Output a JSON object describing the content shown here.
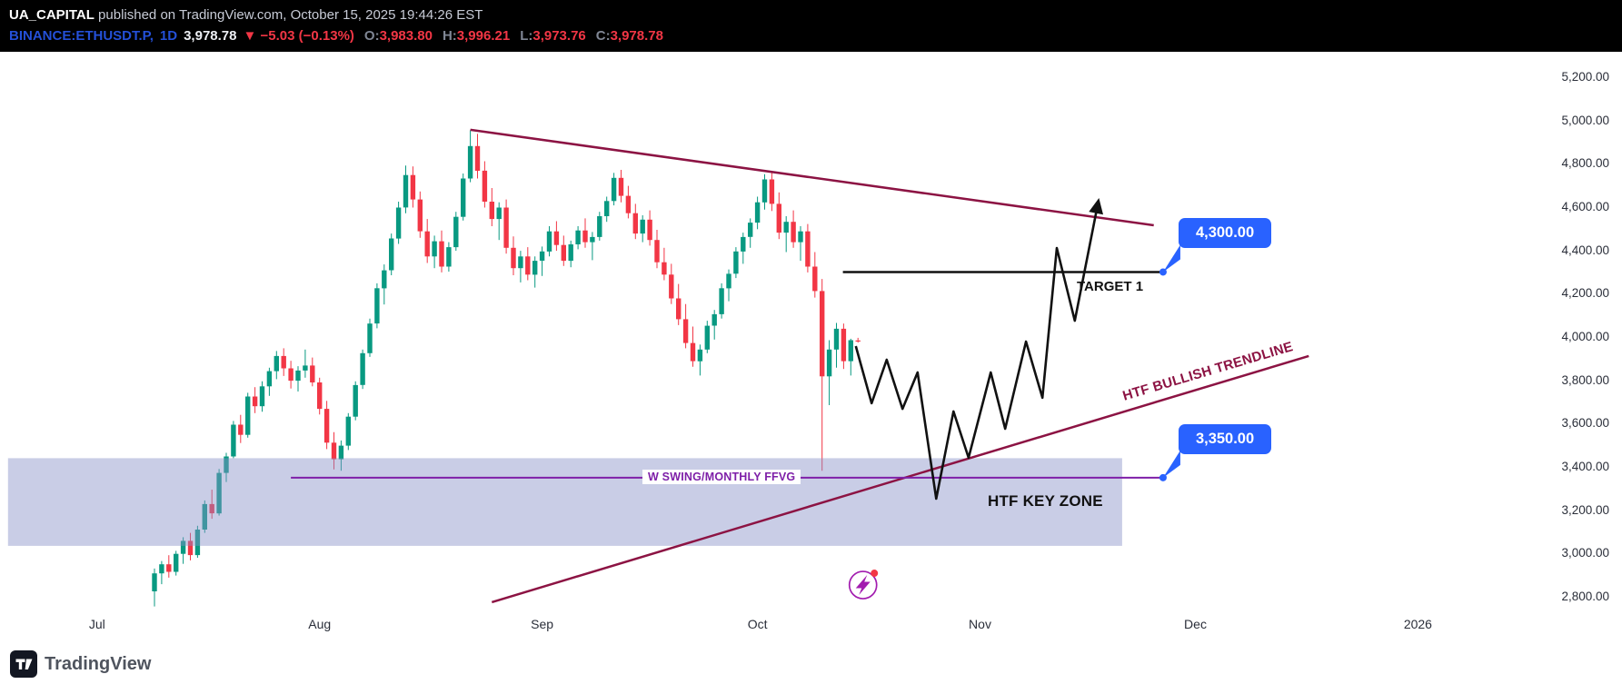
{
  "header": {
    "author": "UA_CAPITAL",
    "publish_info": " published on TradingView.com, October 15, 2025 19:44:26 EST",
    "symbol": "BINANCE:ETHUSDT.P,",
    "timeframe": "1D",
    "last_price": "3,978.78",
    "change": "▼ −5.03 (−0.13%)",
    "ohlc": [
      {
        "label": "O:",
        "value": "3,983.80"
      },
      {
        "label": "H:",
        "value": "3,996.21"
      },
      {
        "label": "L:",
        "value": "3,973.76"
      },
      {
        "label": "C:",
        "value": "3,978.78"
      }
    ]
  },
  "colors": {
    "background": "#ffffff",
    "header_bg": "#000000",
    "up": "#089981",
    "down": "#f23645",
    "callout_blue": "#2962ff",
    "trendline_maroon": "#8c1343",
    "ffvg_purple": "#7e1fa8",
    "zone_lavender": "#8890c8"
  },
  "annotations": {
    "target_text": "TARGET 1",
    "key_zone_text": "HTF KEY ZONE",
    "ffvg_text": "W SWING/MONTHLY FFVG",
    "trendline_text": "HTF BULLISH TRENDLINE",
    "callout_color": "#2962ff",
    "callouts": [
      {
        "text": "4,300.00",
        "price": 4300,
        "anchor_d": 140.5
      },
      {
        "text": "3,350.00",
        "price": 3350,
        "anchor_d": 140.5
      }
    ],
    "target_line": {
      "price": 4300,
      "from_d": 95.9,
      "to_d": 140.5,
      "color": "#111111"
    },
    "ffvg_line": {
      "price": 3350,
      "from_d": 19,
      "to_d": 140.5,
      "color": "#7e1fa8"
    },
    "resistance_trendline": {
      "from": [
        44,
        4957
      ],
      "to": [
        139.2,
        4516
      ],
      "color": "#8c1343"
    },
    "bullish_trendline": {
      "from": [
        47,
        2775
      ],
      "to": [
        160.8,
        3912
      ],
      "color": "#8c1343"
    },
    "key_zone": {
      "price_top": 3440,
      "price_bottom": 3035,
      "from_d": -20.4,
      "to_d": 134.8,
      "color": "rgba(136,144,200,0.45)"
    },
    "projection": {
      "color": "#111111",
      "points": [
        [
          97.7,
          3958
        ],
        [
          99.9,
          3694
        ],
        [
          102,
          3895
        ],
        [
          104.2,
          3668
        ],
        [
          106.3,
          3836
        ],
        [
          108.9,
          3253
        ],
        [
          111.3,
          3656
        ],
        [
          113.4,
          3442
        ],
        [
          116.5,
          3836
        ],
        [
          118.5,
          3576
        ],
        [
          121.4,
          3979
        ],
        [
          123.7,
          3719
        ],
        [
          125.7,
          4411
        ],
        [
          128.2,
          4075
        ],
        [
          131.4,
          4613
        ]
      ]
    },
    "boost_icon": {
      "d": 98.7,
      "price": 2854,
      "color": "#a21caf",
      "badge_color": "#f23645"
    }
  },
  "footer": {
    "brand": "TradingView"
  },
  "chart_data": {
    "type": "candlestick",
    "title": "BINANCE:ETHUSDT.P 1D",
    "interval": "1D",
    "first_candle_date": "2025-07-09",
    "last_candle_date": "2025-10-15",
    "ylim": [
      2700,
      5300
    ],
    "grid": false,
    "colors": {
      "up": "#089981",
      "down": "#f23645"
    },
    "y_axis_ticks": [
      "5,200.00",
      "5,000.00",
      "4,800.00",
      "4,600.00",
      "4,400.00",
      "4,200.00",
      "4,000.00",
      "3,800.00",
      "3,600.00",
      "3,400.00",
      "3,200.00",
      "3,000.00",
      "2,800.00"
    ],
    "x_axis_labels": [
      {
        "label": "Jul",
        "day_offset": -8
      },
      {
        "label": "Aug",
        "day_offset": 23
      },
      {
        "label": "Sep",
        "day_offset": 54
      },
      {
        "label": "Oct",
        "day_offset": 84
      },
      {
        "label": "Nov",
        "day_offset": 115
      },
      {
        "label": "Dec",
        "day_offset": 145
      },
      {
        "label": "2026",
        "day_offset": 176
      }
    ],
    "candles_ohlc": [
      [
        2825,
        2930,
        2755,
        2908
      ],
      [
        2908,
        2965,
        2858,
        2950
      ],
      [
        2950,
        2992,
        2888,
        2915
      ],
      [
        2915,
        3012,
        2898,
        2998
      ],
      [
        2998,
        3075,
        2952,
        3058
      ],
      [
        3058,
        3095,
        2968,
        2992
      ],
      [
        2992,
        3128,
        2980,
        3110
      ],
      [
        3110,
        3245,
        3095,
        3228
      ],
      [
        3228,
        3295,
        3160,
        3185
      ],
      [
        3185,
        3390,
        3175,
        3372
      ],
      [
        3372,
        3465,
        3330,
        3448
      ],
      [
        3448,
        3612,
        3440,
        3595
      ],
      [
        3595,
        3640,
        3510,
        3548
      ],
      [
        3548,
        3742,
        3535,
        3725
      ],
      [
        3725,
        3768,
        3648,
        3680
      ],
      [
        3680,
        3795,
        3655,
        3772
      ],
      [
        3772,
        3858,
        3728,
        3842
      ],
      [
        3842,
        3935,
        3805,
        3912
      ],
      [
        3912,
        3948,
        3820,
        3855
      ],
      [
        3855,
        3890,
        3762,
        3798
      ],
      [
        3798,
        3865,
        3748,
        3845
      ],
      [
        3845,
        3942,
        3812,
        3868
      ],
      [
        3868,
        3905,
        3772,
        3790
      ],
      [
        3790,
        3812,
        3642,
        3668
      ],
      [
        3668,
        3705,
        3482,
        3512
      ],
      [
        3512,
        3560,
        3388,
        3435
      ],
      [
        3435,
        3522,
        3382,
        3498
      ],
      [
        3498,
        3648,
        3478,
        3632
      ],
      [
        3632,
        3795,
        3615,
        3778
      ],
      [
        3778,
        3942,
        3760,
        3925
      ],
      [
        3925,
        4085,
        3908,
        4062
      ],
      [
        4062,
        4248,
        4040,
        4225
      ],
      [
        4225,
        4335,
        4150,
        4308
      ],
      [
        4308,
        4478,
        4285,
        4455
      ],
      [
        4455,
        4625,
        4430,
        4598
      ],
      [
        4598,
        4792,
        4572,
        4748
      ],
      [
        4748,
        4788,
        4598,
        4635
      ],
      [
        4635,
        4672,
        4458,
        4488
      ],
      [
        4488,
        4545,
        4342,
        4372
      ],
      [
        4372,
        4468,
        4318,
        4442
      ],
      [
        4442,
        4492,
        4298,
        4325
      ],
      [
        4325,
        4438,
        4302,
        4415
      ],
      [
        4415,
        4578,
        4398,
        4555
      ],
      [
        4555,
        4755,
        4538,
        4732
      ],
      [
        4732,
        4955,
        4715,
        4882
      ],
      [
        4882,
        4938,
        4732,
        4768
      ],
      [
        4768,
        4812,
        4598,
        4625
      ],
      [
        4625,
        4688,
        4512,
        4545
      ],
      [
        4545,
        4622,
        4448,
        4598
      ],
      [
        4598,
        4635,
        4385,
        4412
      ],
      [
        4412,
        4465,
        4285,
        4318
      ],
      [
        4318,
        4398,
        4252,
        4372
      ],
      [
        4372,
        4415,
        4262,
        4288
      ],
      [
        4288,
        4372,
        4228,
        4352
      ],
      [
        4352,
        4418,
        4282,
        4395
      ],
      [
        4395,
        4512,
        4372,
        4488
      ],
      [
        4488,
        4535,
        4398,
        4425
      ],
      [
        4425,
        4468,
        4328,
        4352
      ],
      [
        4352,
        4445,
        4322,
        4428
      ],
      [
        4428,
        4512,
        4405,
        4492
      ],
      [
        4492,
        4548,
        4412,
        4438
      ],
      [
        4438,
        4485,
        4355,
        4462
      ],
      [
        4462,
        4578,
        4445,
        4558
      ],
      [
        4558,
        4648,
        4532,
        4628
      ],
      [
        4628,
        4758,
        4608,
        4735
      ],
      [
        4735,
        4772,
        4622,
        4652
      ],
      [
        4652,
        4698,
        4548,
        4572
      ],
      [
        4572,
        4615,
        4452,
        4478
      ],
      [
        4478,
        4562,
        4438,
        4542
      ],
      [
        4542,
        4585,
        4422,
        4448
      ],
      [
        4448,
        4495,
        4318,
        4345
      ],
      [
        4345,
        4412,
        4262,
        4288
      ],
      [
        4288,
        4338,
        4152,
        4178
      ],
      [
        4178,
        4245,
        4055,
        4082
      ],
      [
        4082,
        4152,
        3948,
        3972
      ],
      [
        3972,
        4048,
        3862,
        3888
      ],
      [
        3888,
        3965,
        3822,
        3942
      ],
      [
        3942,
        4075,
        3925,
        4052
      ],
      [
        4052,
        4125,
        3988,
        4105
      ],
      [
        4105,
        4248,
        4085,
        4225
      ],
      [
        4225,
        4312,
        4165,
        4292
      ],
      [
        4292,
        4415,
        4272,
        4395
      ],
      [
        4395,
        4482,
        4338,
        4462
      ],
      [
        4462,
        4548,
        4412,
        4528
      ],
      [
        4528,
        4648,
        4498,
        4622
      ],
      [
        4622,
        4752,
        4588,
        4728
      ],
      [
        4728,
        4762,
        4582,
        4615
      ],
      [
        4615,
        4668,
        4452,
        4482
      ],
      [
        4482,
        4558,
        4392,
        4532
      ],
      [
        4532,
        4585,
        4412,
        4438
      ],
      [
        4438,
        4512,
        4352,
        4488
      ],
      [
        4488,
        4522,
        4298,
        4325
      ],
      [
        4325,
        4392,
        4182,
        4212
      ],
      [
        4212,
        4268,
        3382,
        3818
      ],
      [
        3818,
        3985,
        3685,
        3942
      ],
      [
        3942,
        4065,
        3858,
        4038
      ],
      [
        4038,
        4062,
        3852,
        3888
      ],
      [
        3888,
        3992,
        3822,
        3985
      ],
      [
        3983.8,
        3996.21,
        3973.76,
        3978.78
      ]
    ]
  }
}
